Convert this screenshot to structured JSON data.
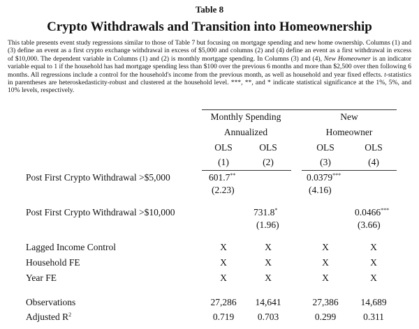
{
  "table_number": "Table 8",
  "title": "Crypto Withdrawals and Transition into Homeownership",
  "caption": {
    "part1": "This table presents event study regressions similar to those of Table 7 but focusing on mortgage spending and new home ownership. Columns (1) and (3) define an event as a first crypto exchange withdrawal in excess of $5,000 and columns (2) and (4) define an event as a first withdrawal in excess of $10,000. The dependent variable in Columns (1) and (2) is monthly mortgage spending. In Columns (3) and (4), ",
    "italic1": "New Homeowner",
    "part2": " is an indicator variable equal to 1 if the household has had mortgage spending less than $100 over the previous 6 months and more than $2,500 over then following 6 months. All regressions include a control for the household's income from the previous month, as well as household and year fixed effects. ",
    "italic2": "t",
    "part3": "-statistics in parentheses are heteroskedasticity-robust and clustered at the household level. ***, **, and * indicate statistical significance at the 1%, 5%, and 10% levels, respectively."
  },
  "headers": {
    "group1_line1": "Monthly Spending",
    "group1_line2": "Annualized",
    "group2_line1": "New",
    "group2_line2": "Homeowner",
    "methods": [
      "OLS",
      "OLS",
      "OLS",
      "OLS"
    ],
    "col_numbers": [
      "(1)",
      "(2)",
      "(3)",
      "(4)"
    ]
  },
  "rows": [
    {
      "label": "Post First Crypto Withdrawal >$5,000",
      "coef": [
        [
          "601.7",
          "**"
        ],
        [
          "",
          ""
        ],
        [
          "0.0379",
          "***"
        ],
        [
          "",
          ""
        ]
      ],
      "tstat": [
        "(2.23)",
        "",
        "(4.16)",
        ""
      ]
    },
    {
      "label": "Post First Crypto Withdrawal >$10,000",
      "coef": [
        [
          "",
          ""
        ],
        [
          "731.8",
          "*"
        ],
        [
          "",
          ""
        ],
        [
          "0.0466",
          "***"
        ]
      ],
      "tstat": [
        "",
        "(1.96)",
        "",
        "(3.66)"
      ]
    }
  ],
  "controls": [
    {
      "label": "Lagged Income Control",
      "values": [
        "X",
        "X",
        "X",
        "X"
      ]
    },
    {
      "label": "Household FE",
      "values": [
        "X",
        "X",
        "X",
        "X"
      ]
    },
    {
      "label": "Year FE",
      "values": [
        "X",
        "X",
        "X",
        "X"
      ]
    }
  ],
  "stats": [
    {
      "label": "Observations",
      "values": [
        "27,286",
        "14,641",
        "27,386",
        "14,689"
      ]
    },
    {
      "label_main": "Adjusted R",
      "label_sup": "2",
      "values": [
        "0.719",
        "0.703",
        "0.299",
        "0.311"
      ]
    }
  ]
}
